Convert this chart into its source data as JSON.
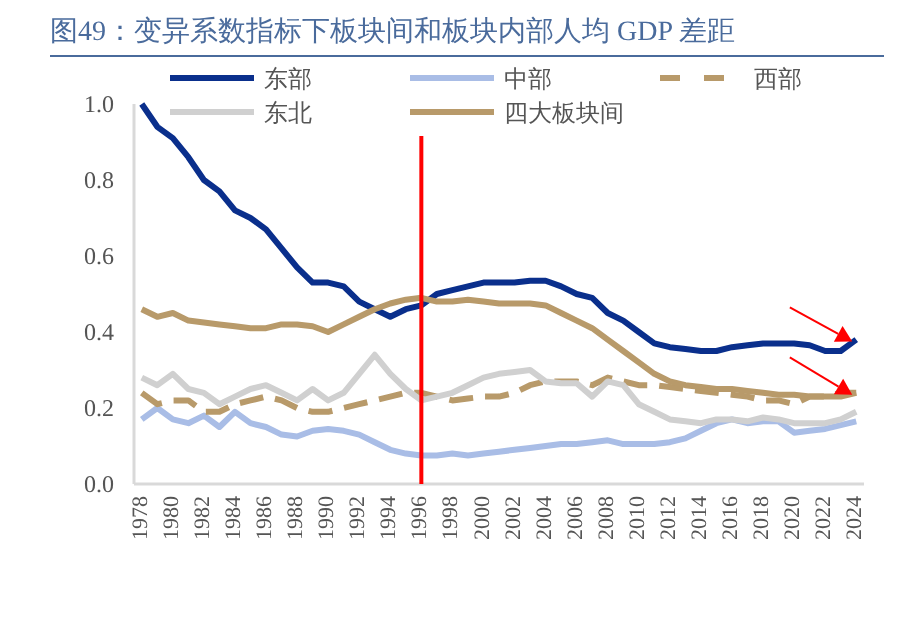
{
  "chart_data": {
    "type": "line",
    "title": "图49：变异系数指标下板块间和板块内部人均 GDP 差距",
    "x": [
      1978,
      1979,
      1980,
      1981,
      1982,
      1983,
      1984,
      1985,
      1986,
      1987,
      1988,
      1989,
      1990,
      1991,
      1992,
      1993,
      1994,
      1995,
      1996,
      1997,
      1998,
      1999,
      2000,
      2001,
      2002,
      2003,
      2004,
      2005,
      2006,
      2007,
      2008,
      2009,
      2010,
      2011,
      2012,
      2013,
      2014,
      2015,
      2016,
      2017,
      2018,
      2019,
      2020,
      2021,
      2022,
      2023,
      2024
    ],
    "series": [
      {
        "name": "东部",
        "color": "#0a2f8c",
        "values": [
          1.0,
          0.94,
          0.91,
          0.86,
          0.8,
          0.77,
          0.72,
          0.7,
          0.67,
          0.62,
          0.57,
          0.53,
          0.53,
          0.52,
          0.48,
          0.46,
          0.44,
          0.46,
          0.47,
          0.5,
          0.51,
          0.52,
          0.53,
          0.53,
          0.53,
          0.535,
          0.535,
          0.52,
          0.5,
          0.49,
          0.45,
          0.43,
          0.4,
          0.37,
          0.36,
          0.355,
          0.35,
          0.35,
          0.36,
          0.365,
          0.37,
          0.37,
          0.37,
          0.365,
          0.35,
          0.35,
          0.38
        ]
      },
      {
        "name": "中部",
        "color": "#a9bde6",
        "values": [
          0.17,
          0.2,
          0.17,
          0.16,
          0.18,
          0.15,
          0.19,
          0.16,
          0.15,
          0.13,
          0.125,
          0.14,
          0.145,
          0.14,
          0.13,
          0.11,
          0.09,
          0.08,
          0.075,
          0.075,
          0.08,
          0.075,
          0.08,
          0.085,
          0.09,
          0.095,
          0.1,
          0.105,
          0.105,
          0.11,
          0.115,
          0.105,
          0.105,
          0.105,
          0.11,
          0.12,
          0.14,
          0.16,
          0.17,
          0.16,
          0.165,
          0.165,
          0.135,
          0.14,
          0.145,
          0.155,
          0.165
        ]
      },
      {
        "name": "西部",
        "color": "#b89a6a",
        "line_style": "dashed",
        "values": [
          0.24,
          0.21,
          0.22,
          0.22,
          0.19,
          0.19,
          0.21,
          0.22,
          0.23,
          0.22,
          0.2,
          0.19,
          0.19,
          0.2,
          0.21,
          0.22,
          0.23,
          0.24,
          0.24,
          0.23,
          0.22,
          0.225,
          0.23,
          0.23,
          0.24,
          0.26,
          0.27,
          0.27,
          0.27,
          0.26,
          0.28,
          0.27,
          0.26,
          0.26,
          0.255,
          0.25,
          0.245,
          0.24,
          0.235,
          0.23,
          0.22,
          0.22,
          0.21,
          0.23,
          0.23,
          0.24,
          0.24
        ]
      },
      {
        "name": "东北",
        "color": "#d0d0d0",
        "values": [
          0.28,
          0.26,
          0.29,
          0.25,
          0.24,
          0.21,
          0.23,
          0.25,
          0.26,
          0.24,
          0.22,
          0.25,
          0.22,
          0.24,
          0.29,
          0.34,
          0.29,
          0.25,
          0.22,
          0.23,
          0.24,
          0.26,
          0.28,
          0.29,
          0.295,
          0.3,
          0.27,
          0.265,
          0.265,
          0.23,
          0.27,
          0.26,
          0.21,
          0.19,
          0.17,
          0.165,
          0.16,
          0.17,
          0.17,
          0.165,
          0.175,
          0.17,
          0.16,
          0.16,
          0.16,
          0.17,
          0.19
        ]
      },
      {
        "name": "四大板块间",
        "color": "#b89a6a",
        "values": [
          0.46,
          0.44,
          0.45,
          0.43,
          0.425,
          0.42,
          0.415,
          0.41,
          0.41,
          0.42,
          0.42,
          0.415,
          0.4,
          0.42,
          0.44,
          0.46,
          0.475,
          0.485,
          0.49,
          0.48,
          0.48,
          0.485,
          0.48,
          0.475,
          0.475,
          0.475,
          0.47,
          0.45,
          0.43,
          0.41,
          0.38,
          0.35,
          0.32,
          0.29,
          0.27,
          0.26,
          0.255,
          0.25,
          0.25,
          0.245,
          0.24,
          0.235,
          0.235,
          0.23,
          0.23,
          0.23,
          0.24
        ]
      }
    ],
    "xlim": [
      1977.5,
      2024.5
    ],
    "xticks": [
      1978,
      1980,
      1982,
      1984,
      1986,
      1988,
      1990,
      1992,
      1994,
      1996,
      1998,
      2000,
      2002,
      2004,
      2006,
      2008,
      2010,
      2012,
      2014,
      2016,
      2018,
      2020,
      2022,
      2024
    ],
    "ylim": [
      0,
      1
    ],
    "yticks": [
      {
        "value": 0,
        "label": "0.0"
      },
      {
        "value": 0.2,
        "label": "0.2"
      },
      {
        "value": 0.4,
        "label": "0.4"
      },
      {
        "value": 0.6,
        "label": "0.6"
      },
      {
        "value": 0.8,
        "label": "0.8"
      },
      {
        "value": 1,
        "label": "1.0"
      }
    ],
    "ref_lines": [
      {
        "axis": "x",
        "value": 1996,
        "color": "#ff0000"
      }
    ],
    "legend": "top",
    "grid": false,
    "marker": "none",
    "line_style": "solid"
  }
}
